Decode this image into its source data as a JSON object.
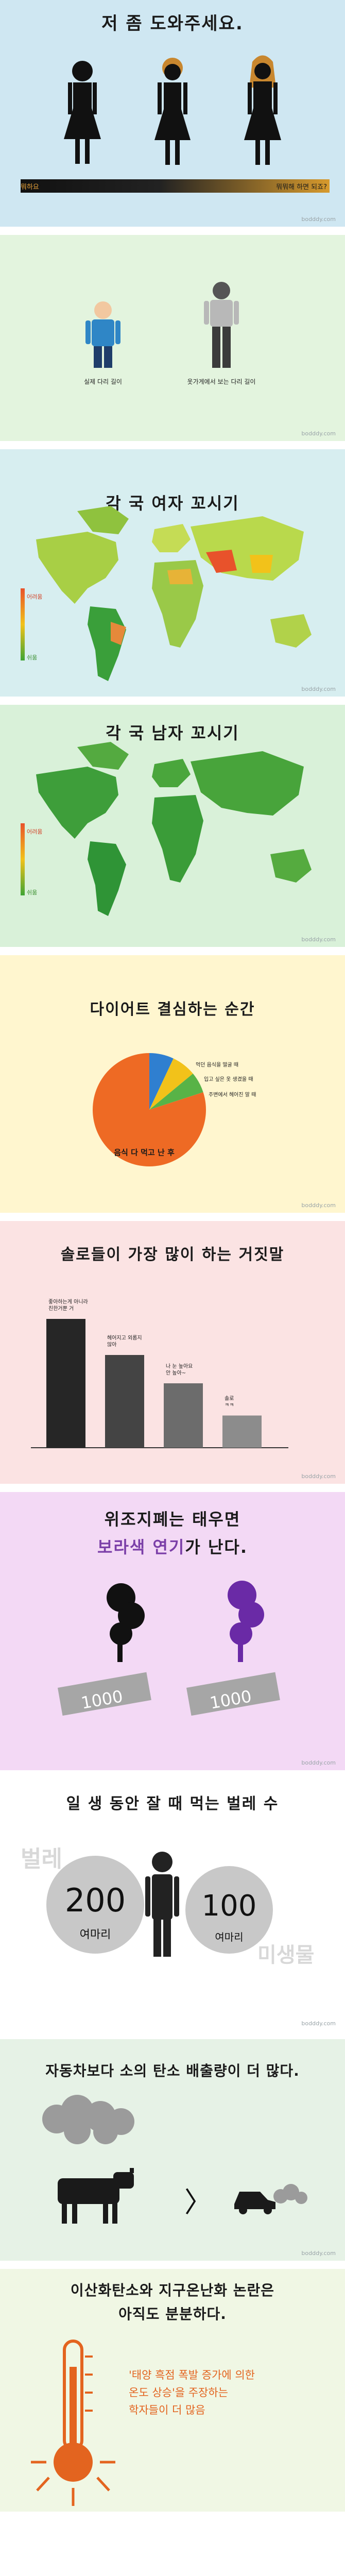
{
  "panels": [
    {
      "title": "저 좀 도와주세요.",
      "bar_left": "뭐하요",
      "bar_right": "뭐뭐해 하면 되죠?",
      "credit": "bodddy.com",
      "colors": {
        "bg": "#cfe7f2",
        "figure": "#111111",
        "hair": "#c8872f"
      }
    },
    {
      "left_label": "실제 다리 길이",
      "right_label": "옷가게에서 보는 다리 길이",
      "credit": "bodddy.com",
      "colors": {
        "bg": "#e3f4de",
        "left": "#2f86c6",
        "right": "#b8b8b8"
      }
    },
    {
      "title": "각 국 여자 꼬시기",
      "legend_top": "어려움",
      "legend_bottom": "쉬움",
      "credit": "bodddy.com",
      "colors": {
        "bg": "#d7eef0"
      }
    },
    {
      "title": "각 국 남자 꼬시기",
      "legend_top": "어려움",
      "legend_bottom": "쉬움",
      "credit": "bodddy.com",
      "colors": {
        "bg": "#d9f1d9"
      }
    },
    {
      "title": "다이어트 결심하는 순간",
      "credit": "bodddy.com",
      "colors": {
        "bg": "#fff6cf"
      },
      "chart_data": {
        "type": "pie",
        "title": "다이어트 결심하는 순간",
        "labels": [
          "음식 다 먹고 난 후",
          "먹던 음식을 떨굴 때",
          "입고 싶은 옷 생겼을 때",
          "주변에서 헤어진 말 때"
        ],
        "values": [
          80,
          7,
          7,
          6
        ],
        "colors": [
          "#ee6a24",
          "#2f7fd0",
          "#f2c21a",
          "#58b347"
        ]
      }
    },
    {
      "title": "솔로들이 가장 많이 하는 거짓말",
      "credit": "bodddy.com",
      "colors": {
        "bg": "#fbe3e3"
      },
      "chart_data": {
        "type": "bar",
        "title": "솔로들이 가장 많이 하는 거짓말",
        "categories": [
          "좋아하는게 아니라 친한거뿐 거",
          "헤어지고 외롭지 않아",
          "나 눈 높아요 안 높아~",
          "솔로 ㅋㅋ"
        ],
        "values": [
          100,
          72,
          50,
          25
        ],
        "colors": [
          "#262626",
          "#444444",
          "#6c6c6c",
          "#8c8c8c"
        ]
      }
    },
    {
      "title_line1": "위조지폐는 태우면",
      "title_line2_colored": "보라색 연기",
      "title_line2_rest": "가 난다.",
      "note_left": "1000",
      "note_right": "1000",
      "credit": "bodddy.com",
      "colors": {
        "bg": "#f3d9f5",
        "accent": "#7b3fa8",
        "smoke_left": "#111111",
        "smoke_right": "#6a2aa6"
      }
    },
    {
      "title": "일 생 동안 잘 때 먹는 벌레 수",
      "watermark_left": "벌레",
      "watermark_right": "미생물",
      "left_value": "200",
      "left_unit": "여마리",
      "right_value": "100",
      "right_unit": "여마리",
      "credit": "bodddy.com",
      "colors": {
        "bg": "#ffffff"
      }
    },
    {
      "title": "자동차보다 소의 탄소 배출량이 더 많다.",
      "symbol": "〉",
      "credit": "bodddy.com",
      "colors": {
        "bg": "#e6f2e6"
      }
    },
    {
      "title_line1": "이산화탄소와 지구온난화 논란은",
      "title_line2": "아직도 분분하다.",
      "quote_line1": "'태양 흑점 폭발 증가에 의한",
      "quote_line2": "온도 상승'을 주장하는",
      "quote_line3": "학자들이 더 많음",
      "colors": {
        "bg": "#f0f7e4",
        "accent": "#e3641f"
      }
    }
  ]
}
